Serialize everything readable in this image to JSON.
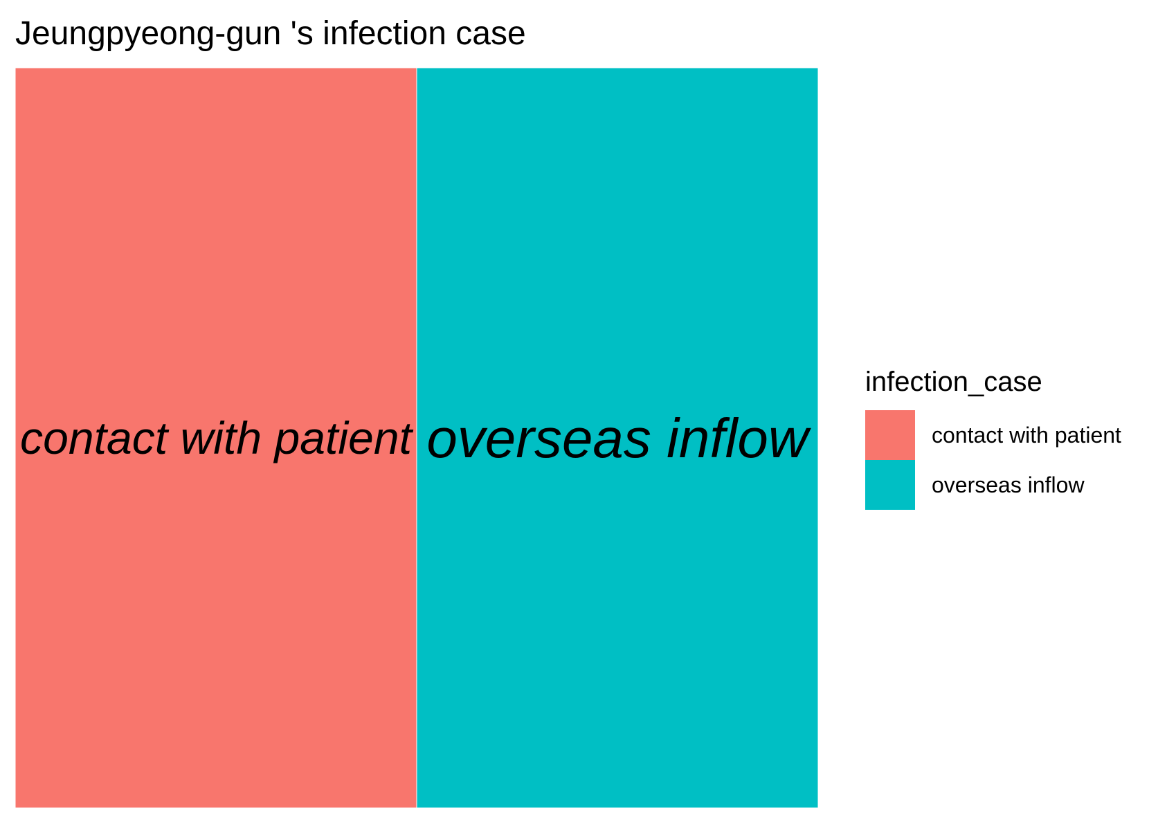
{
  "chart_data": {
    "type": "treemap",
    "title": "Jeungpyeong-gun 's infection case",
    "legend": {
      "title": "infection_case",
      "position": "right"
    },
    "series": [
      {
        "name": "contact with patient",
        "value": 1,
        "color": "#F8766D"
      },
      {
        "name": "overseas inflow",
        "value": 1,
        "color": "#00BFC4"
      }
    ]
  }
}
